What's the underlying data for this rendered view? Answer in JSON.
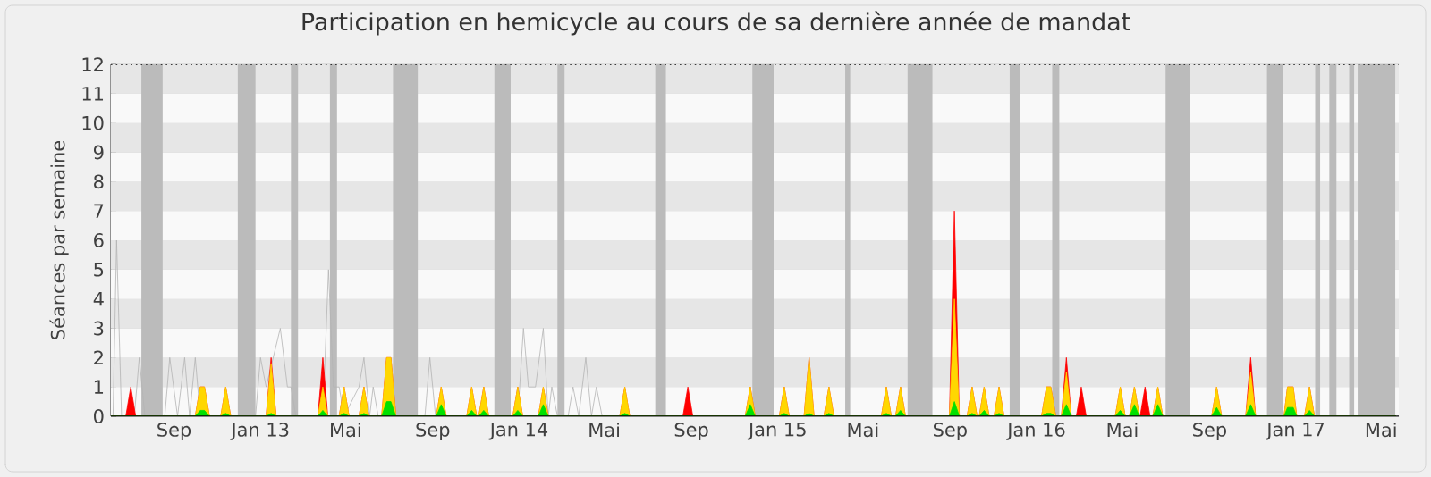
{
  "chart_data": {
    "type": "area",
    "title": "Participation en hemicycle au cours de sa dernière année de mandat",
    "ylabel": "Séances par semaine",
    "xlim": [
      "2012-06-04",
      "2017-05-26"
    ],
    "ylim": [
      0,
      12
    ],
    "yticks": [
      0,
      1,
      2,
      3,
      4,
      5,
      6,
      7,
      8,
      9,
      10,
      11,
      12
    ],
    "xticks": [
      {
        "value": "2012-09-01",
        "label": "Sep"
      },
      {
        "value": "2013-01-01",
        "label": "Jan 13"
      },
      {
        "value": "2013-05-01",
        "label": "Mai"
      },
      {
        "value": "2013-09-01",
        "label": "Sep"
      },
      {
        "value": "2014-01-01",
        "label": "Jan 14"
      },
      {
        "value": "2014-05-01",
        "label": "Mai"
      },
      {
        "value": "2014-09-01",
        "label": "Sep"
      },
      {
        "value": "2015-01-01",
        "label": "Jan 15"
      },
      {
        "value": "2015-05-01",
        "label": "Mai"
      },
      {
        "value": "2015-09-01",
        "label": "Sep"
      },
      {
        "value": "2016-01-01",
        "label": "Jan 16"
      },
      {
        "value": "2016-05-01",
        "label": "Mai"
      },
      {
        "value": "2016-09-01",
        "label": "Sep"
      },
      {
        "value": "2017-01-01",
        "label": "Jan 17"
      },
      {
        "value": "2017-05-01",
        "label": "Mai"
      }
    ],
    "grid": "y",
    "ref_lines": [
      {
        "axis": "y",
        "value": 12,
        "line_style": "dotted"
      }
    ],
    "bands": [
      {
        "axis": "x",
        "from": "2012-07-17",
        "to": "2012-08-16"
      },
      {
        "axis": "x",
        "from": "2012-11-30",
        "to": "2012-12-25"
      },
      {
        "axis": "x",
        "from": "2013-02-13",
        "to": "2013-02-23"
      },
      {
        "axis": "x",
        "from": "2013-04-09",
        "to": "2013-04-19"
      },
      {
        "axis": "x",
        "from": "2013-07-07",
        "to": "2013-08-11"
      },
      {
        "axis": "x",
        "from": "2013-11-27",
        "to": "2013-12-20"
      },
      {
        "axis": "x",
        "from": "2014-02-24",
        "to": "2014-03-06"
      },
      {
        "axis": "x",
        "from": "2014-07-12",
        "to": "2014-07-27"
      },
      {
        "axis": "x",
        "from": "2014-11-26",
        "to": "2014-12-26"
      },
      {
        "axis": "x",
        "from": "2015-04-06",
        "to": "2015-04-13"
      },
      {
        "axis": "x",
        "from": "2015-07-03",
        "to": "2015-08-07"
      },
      {
        "axis": "x",
        "from": "2015-11-24",
        "to": "2015-12-09"
      },
      {
        "axis": "x",
        "from": "2016-01-23",
        "to": "2016-02-02"
      },
      {
        "axis": "x",
        "from": "2016-07-01",
        "to": "2016-08-04"
      },
      {
        "axis": "x",
        "from": "2016-11-21",
        "to": "2016-12-14"
      },
      {
        "axis": "x",
        "from": "2017-01-28",
        "to": "2017-02-04"
      },
      {
        "axis": "x",
        "from": "2017-02-17",
        "to": "2017-02-27"
      },
      {
        "axis": "x",
        "from": "2017-03-17",
        "to": "2017-03-24"
      },
      {
        "axis": "x",
        "from": "2017-03-29",
        "to": "2017-05-21"
      }
    ],
    "x": [
      "2012-06-04",
      "2012-06-25",
      "2012-07-02",
      "2012-07-09",
      "2012-10-01",
      "2012-10-08",
      "2012-10-14",
      "2012-10-21",
      "2012-11-06",
      "2012-11-13",
      "2012-11-20",
      "2013-01-09",
      "2013-01-16",
      "2013-01-23",
      "2013-03-23",
      "2013-03-30",
      "2013-04-06",
      "2013-04-22",
      "2013-04-29",
      "2013-05-06",
      "2013-05-20",
      "2013-05-27",
      "2013-06-03",
      "2013-06-21",
      "2013-06-28",
      "2013-07-04",
      "2013-07-11",
      "2013-09-06",
      "2013-09-13",
      "2013-09-20",
      "2013-10-19",
      "2013-10-26",
      "2013-11-02",
      "2013-11-05",
      "2013-11-12",
      "2013-11-19",
      "2013-12-23",
      "2013-12-30",
      "2014-01-06",
      "2014-01-28",
      "2014-02-04",
      "2014-02-11",
      "2014-05-23",
      "2014-05-30",
      "2014-06-06",
      "2014-08-20",
      "2014-08-27",
      "2014-09-03",
      "2014-11-16",
      "2014-11-23",
      "2014-11-30",
      "2015-01-03",
      "2015-01-10",
      "2015-01-17",
      "2015-02-07",
      "2015-02-14",
      "2015-02-21",
      "2015-03-07",
      "2015-03-14",
      "2015-03-21",
      "2015-05-27",
      "2015-06-03",
      "2015-06-10",
      "2015-06-16",
      "2015-06-23",
      "2015-06-30",
      "2015-08-31",
      "2015-09-07",
      "2015-09-14",
      "2015-09-25",
      "2015-10-02",
      "2015-10-09",
      "2015-10-12",
      "2015-10-19",
      "2015-10-26",
      "2015-11-02",
      "2015-11-09",
      "2015-11-16",
      "2016-01-08",
      "2016-01-15",
      "2016-01-21",
      "2016-01-28",
      "2016-02-05",
      "2016-02-12",
      "2016-02-19",
      "2016-02-26",
      "2016-03-04",
      "2016-03-11",
      "2016-04-21",
      "2016-04-28",
      "2016-05-05",
      "2016-05-11",
      "2016-05-18",
      "2016-05-25",
      "2016-05-26",
      "2016-06-02",
      "2016-06-09",
      "2016-06-13",
      "2016-06-20",
      "2016-06-27",
      "2016-09-04",
      "2016-09-11",
      "2016-09-18",
      "2016-10-22",
      "2016-10-29",
      "2016-11-05",
      "2016-12-15",
      "2016-12-20",
      "2016-12-28",
      "2017-01-02",
      "2017-01-13",
      "2017-01-20",
      "2017-01-27",
      "2017-05-22"
    ],
    "series": [
      {
        "type": "line",
        "color": "#b4b4b4",
        "x": [
          "2012-06-07",
          "2012-06-12",
          "2012-06-19",
          "2012-07-07",
          "2012-07-14",
          "2012-07-22",
          "2012-08-19",
          "2012-08-26",
          "2012-09-06",
          "2012-09-16",
          "2012-09-23",
          "2012-10-01",
          "2012-10-08",
          "2012-12-25",
          "2013-01-01",
          "2013-01-09",
          "2013-01-29",
          "2013-02-08",
          "2013-02-13",
          "2013-02-20",
          "2013-03-30",
          "2013-04-07",
          "2013-04-14",
          "2013-04-22",
          "2013-04-29",
          "2013-05-20",
          "2013-05-27",
          "2013-06-04",
          "2013-06-09",
          "2013-06-16",
          "2013-08-21",
          "2013-08-28",
          "2013-09-05",
          "2013-12-30",
          "2014-01-07",
          "2014-01-14",
          "2014-01-24",
          "2014-02-04",
          "2014-02-11",
          "2014-02-16",
          "2014-02-24",
          "2014-03-11",
          "2014-03-18",
          "2014-03-26",
          "2014-04-05",
          "2014-04-13",
          "2014-04-20",
          "2014-04-28",
          "2017-05-22"
        ],
        "values": [
          0,
          6,
          0,
          0,
          2,
          0,
          0,
          2,
          0,
          2,
          0,
          2,
          0,
          0,
          2,
          1,
          3,
          1,
          1,
          0,
          0,
          5,
          1,
          1,
          0,
          1,
          2,
          0,
          1,
          0,
          0,
          2,
          0,
          0,
          3,
          1,
          1,
          3,
          0,
          1,
          0,
          0,
          1,
          0,
          2,
          0,
          1,
          0,
          0
        ]
      },
      {
        "color": "#ff0000",
        "values": [
          0,
          0,
          1,
          0,
          0,
          1,
          1,
          0,
          0,
          1,
          0,
          0,
          2,
          0,
          0,
          2,
          0,
          0,
          1,
          0,
          0,
          1,
          0,
          0,
          2,
          2,
          0,
          0,
          1,
          0,
          0,
          1,
          0,
          0,
          1,
          0,
          0,
          1,
          0,
          0,
          1,
          0,
          0,
          1,
          0,
          0,
          1,
          0,
          0,
          1,
          0,
          0,
          1,
          0,
          0,
          2,
          0,
          0,
          1,
          0,
          0,
          1,
          0,
          0,
          1,
          0,
          0,
          7,
          0,
          0,
          1,
          0,
          0,
          1,
          0,
          0,
          1,
          0,
          0,
          1,
          1,
          0,
          0,
          2,
          0,
          0,
          1,
          0,
          0,
          1,
          0,
          0,
          1,
          0,
          0,
          1,
          0,
          0,
          1,
          0,
          0,
          1,
          0,
          0,
          2,
          0,
          0,
          1,
          1,
          0,
          0,
          1,
          0,
          0
        ]
      },
      {
        "color": "#ffd700",
        "values": [
          0,
          0,
          0,
          0,
          0,
          1,
          1,
          0,
          0,
          1,
          0,
          0,
          1.8,
          0,
          0,
          1,
          0,
          0,
          1,
          0,
          0,
          1,
          0,
          0,
          2,
          2,
          0,
          0,
          1,
          0,
          0,
          1,
          0,
          0,
          1,
          0,
          0,
          1,
          0,
          0,
          1,
          0,
          0,
          1,
          0,
          0,
          0,
          0,
          0,
          1,
          0,
          0,
          1,
          0,
          0,
          2,
          0,
          0,
          1,
          0,
          0,
          1,
          0,
          0,
          1,
          0,
          0,
          4,
          0,
          0,
          1,
          0,
          0,
          1,
          0,
          0,
          1,
          0,
          0,
          1,
          1,
          0,
          0,
          1.5,
          0,
          0,
          0,
          0,
          0,
          1,
          0,
          0,
          1,
          0,
          0,
          0,
          0,
          0,
          1,
          0,
          0,
          1,
          0,
          0,
          1.5,
          0,
          0,
          1,
          1,
          0,
          0,
          1,
          0,
          0
        ]
      },
      {
        "color": "#00e000",
        "values": [
          0,
          0,
          0,
          0,
          0,
          0.2,
          0.2,
          0,
          0,
          0.1,
          0,
          0,
          0.1,
          0,
          0,
          0.2,
          0,
          0,
          0.1,
          0,
          0,
          0.1,
          0,
          0,
          0.5,
          0.5,
          0,
          0,
          0.4,
          0,
          0,
          0.2,
          0,
          0,
          0.2,
          0,
          0,
          0.2,
          0,
          0,
          0.4,
          0,
          0,
          0.1,
          0,
          0,
          0,
          0,
          0,
          0.4,
          0,
          0,
          0.1,
          0,
          0,
          0.1,
          0,
          0,
          0.1,
          0,
          0,
          0.1,
          0,
          0,
          0.2,
          0,
          0,
          0.5,
          0,
          0,
          0.1,
          0,
          0,
          0.2,
          0,
          0,
          0.1,
          0,
          0,
          0.1,
          0.1,
          0,
          0,
          0.4,
          0,
          0,
          0,
          0,
          0,
          0.2,
          0,
          0,
          0.4,
          0,
          0,
          0,
          0,
          0,
          0.4,
          0,
          0,
          0.3,
          0,
          0,
          0.4,
          0,
          0,
          0.3,
          0.3,
          0,
          0,
          0.2,
          0,
          0
        ]
      }
    ]
  }
}
